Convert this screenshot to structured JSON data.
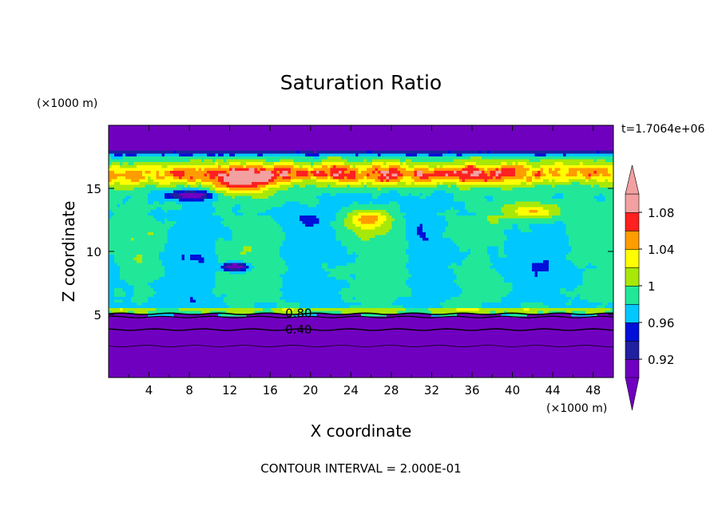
{
  "chart_data": {
    "type": "heatmap",
    "title": "Saturation Ratio",
    "xlabel": "X coordinate",
    "ylabel": "Z coordinate",
    "x_unit": "(×1000 m)",
    "y_unit": "(×1000 m)",
    "time_label": "t=1.7064e+06",
    "footer": "CONTOUR INTERVAL = 2.000E-01",
    "xlim": [
      0,
      50
    ],
    "ylim": [
      0,
      20
    ],
    "x_ticks": [
      4,
      8,
      12,
      16,
      20,
      24,
      28,
      32,
      36,
      40,
      44,
      48
    ],
    "y_ticks": [
      5,
      10,
      15
    ],
    "contour_labels": [
      {
        "text": "0.80",
        "x": 17.5,
        "y": 5.1
      },
      {
        "text": "0.40",
        "x": 17.5,
        "y": 3.8
      }
    ],
    "colorbar": {
      "levels": [
        0.92,
        0.94,
        0.96,
        0.98,
        1.0,
        1.02,
        1.04,
        1.06,
        1.08,
        1.1
      ],
      "tick_labels": [
        "0.92",
        "0.96",
        "1",
        "1.04",
        "1.08"
      ],
      "tick_values": [
        0.92,
        0.96,
        1.0,
        1.04,
        1.08
      ],
      "colors": [
        "#7000c0",
        "#2020a0",
        "#0010d8",
        "#00c8ff",
        "#20e898",
        "#a8e808",
        "#ffff00",
        "#ff9c00",
        "#ff2020",
        "#f2a0a0"
      ],
      "extend": "both"
    }
  }
}
